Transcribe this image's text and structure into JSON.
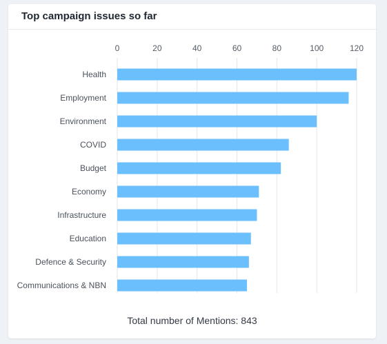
{
  "card": {
    "title": "Top campaign issues so far",
    "footer": "Total number of Mentions: 843"
  },
  "chart_data": {
    "type": "bar",
    "orientation": "horizontal",
    "categories": [
      "Health",
      "Employment",
      "Environment",
      "COVID",
      "Budget",
      "Economy",
      "Infrastructure",
      "Education",
      "Defence & Security",
      "Communications & NBN"
    ],
    "values": [
      120,
      116,
      100,
      86,
      82,
      71,
      70,
      67,
      66,
      65
    ],
    "xlim": [
      0,
      120
    ],
    "xticks": [
      0,
      20,
      40,
      60,
      80,
      100,
      120
    ],
    "x_axis_position": "top",
    "grid": true,
    "legend": "none",
    "bar_color": "#6bbffc",
    "grid_color": "#e3e6ea"
  }
}
